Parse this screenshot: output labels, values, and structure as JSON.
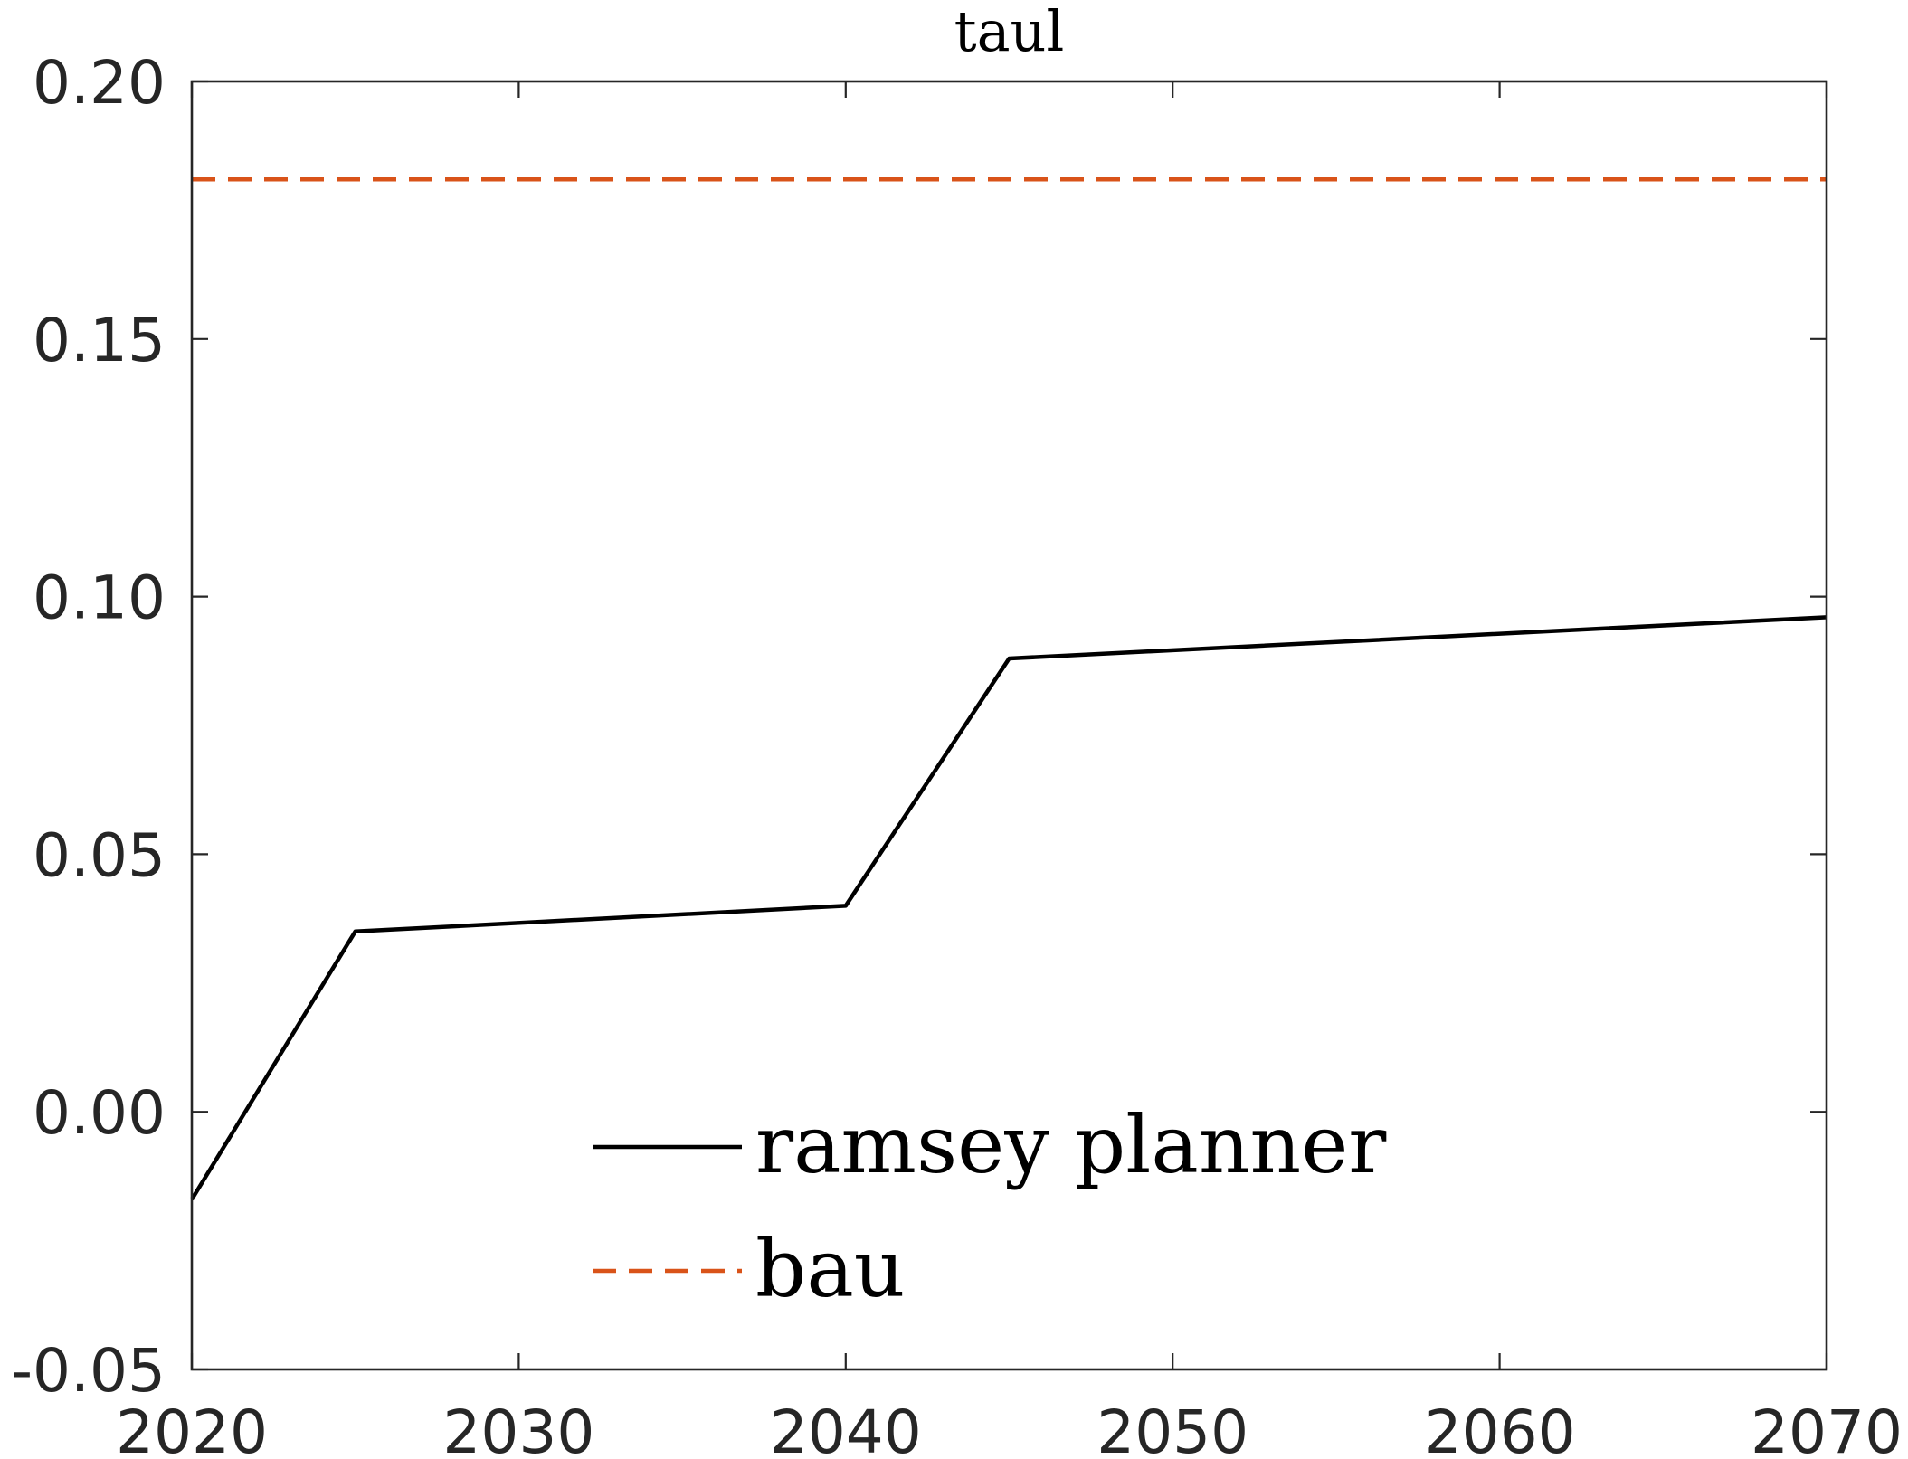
{
  "chart_data": {
    "type": "line",
    "title": "taul",
    "xlabel": "",
    "ylabel": "",
    "xlim": [
      2020,
      2070
    ],
    "ylim": [
      -0.05,
      0.2
    ],
    "xticks": [
      "2020",
      "2030",
      "2040",
      "2050",
      "2060",
      "2070"
    ],
    "yticks": [
      "-0.05",
      "0.00",
      "0.05",
      "0.10",
      "0.15",
      "0.20"
    ],
    "grid": false,
    "legend": "bottom-center",
    "series": [
      {
        "name": "ramsey planner",
        "style": "solid",
        "color": "#000000",
        "x": [
          2020,
          2025,
          2040,
          2045,
          2070
        ],
        "y": [
          -0.017,
          0.035,
          0.04,
          0.088,
          0.096
        ]
      },
      {
        "name": "bau",
        "style": "dashed",
        "color": "#d95319",
        "x": [
          2020,
          2070
        ],
        "y": [
          0.181,
          0.181
        ]
      }
    ]
  }
}
